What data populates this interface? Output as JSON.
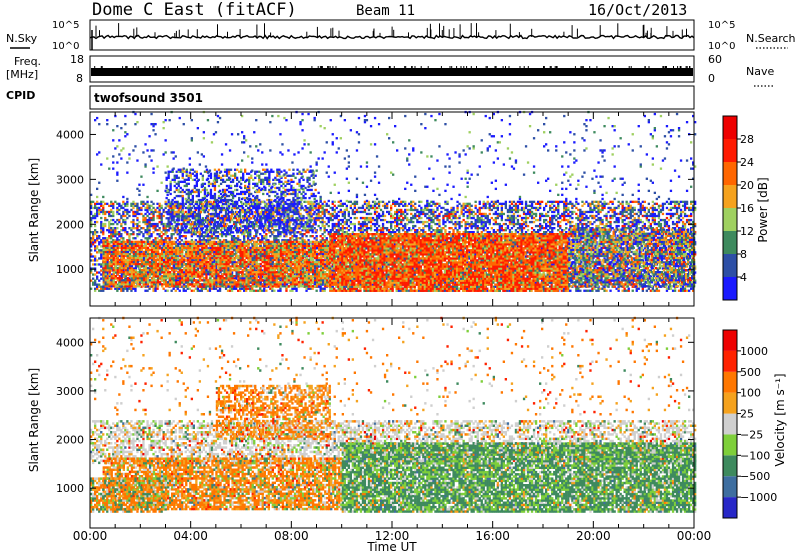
{
  "header": {
    "station": "Dome C East (fitACF)",
    "beam": "Beam 11",
    "date": "16/Oct/2013"
  },
  "top_panels": {
    "nsky_label": "N.Sky",
    "nsky_ticks": [
      "10^5",
      "10^0"
    ],
    "nsearch_label": "N.Search",
    "nsearch_ticks": [
      "10^5",
      "10^0"
    ],
    "freq_label": "Freq.",
    "freq_unit": "[MHz]",
    "freq_ticks": [
      "18",
      "8"
    ],
    "nave_label": "Nave",
    "nave_ticks": [
      "60",
      "0"
    ],
    "cpid_label": "CPID",
    "cpid_value": "twofsound 3501"
  },
  "chart_data": [
    {
      "type": "heatmap",
      "name": "power",
      "ylabel": "Slant Range [km]",
      "ylim": [
        180,
        4500
      ],
      "yticks": [
        "1000",
        "2000",
        "3000",
        "4000"
      ],
      "xlim": [
        0,
        24
      ],
      "colorbar": {
        "label": "Power [dB]",
        "ticks": [
          "4",
          "8",
          "12",
          "16",
          "20",
          "24",
          "28"
        ],
        "colors": [
          "#1a1aff",
          "#2d4fa6",
          "#3e8a5e",
          "#9fd060",
          "#f5a21e",
          "#ff6600",
          "#ff1a00",
          "#ee0000"
        ]
      },
      "bands": [
        {
          "t0": 0.0,
          "t1": 24.0,
          "r0": 500,
          "r1": 2500,
          "density": 0.55,
          "weights": [
            0.3,
            0.2,
            0.15,
            0.1,
            0.1,
            0.08,
            0.07
          ]
        },
        {
          "t0": 0.5,
          "t1": 9.5,
          "r0": 600,
          "r1": 1600,
          "density": 0.85,
          "weights": [
            0.02,
            0.06,
            0.1,
            0.12,
            0.2,
            0.25,
            0.25
          ]
        },
        {
          "t0": 9.5,
          "t1": 19.0,
          "r0": 500,
          "r1": 1800,
          "density": 0.9,
          "weights": [
            0.0,
            0.02,
            0.05,
            0.08,
            0.15,
            0.3,
            0.4
          ]
        },
        {
          "t0": 19.0,
          "t1": 24.0,
          "r0": 600,
          "r1": 1900,
          "density": 0.7,
          "weights": [
            0.15,
            0.2,
            0.2,
            0.15,
            0.15,
            0.1,
            0.05
          ]
        },
        {
          "t0": 3.0,
          "t1": 9.0,
          "r0": 1800,
          "r1": 3200,
          "density": 0.45,
          "weights": [
            0.45,
            0.2,
            0.1,
            0.1,
            0.1,
            0.05,
            0.0
          ]
        },
        {
          "t0": 0.0,
          "t1": 24.0,
          "r0": 2500,
          "r1": 4500,
          "density": 0.04,
          "weights": [
            0.5,
            0.3,
            0.1,
            0.1,
            0.0,
            0.0,
            0.0
          ]
        }
      ]
    },
    {
      "type": "heatmap",
      "name": "velocity",
      "ylabel": "Slant Range [km]",
      "ylim": [
        180,
        4500
      ],
      "yticks": [
        "1000",
        "2000",
        "3000",
        "4000"
      ],
      "xlabel": "Time UT",
      "xticks": [
        "00:00",
        "04:00",
        "08:00",
        "12:00",
        "16:00",
        "20:00",
        "00:00"
      ],
      "xlim": [
        0,
        24
      ],
      "colorbar": {
        "label": "Velocity [m s⁻¹]",
        "ticks": [
          "1000",
          "500",
          "100",
          "25",
          "−25",
          "−100",
          "−500",
          "−1000"
        ],
        "colors": [
          "#2828c8",
          "#3e6ea0",
          "#3e8a5e",
          "#7ecf3a",
          "#cfcfcf",
          "#f5a21e",
          "#ff7700",
          "#ff2200",
          "#ee0000"
        ]
      },
      "bands": [
        {
          "t0": 0.0,
          "t1": 24.0,
          "r0": 1500,
          "r1": 2400,
          "density": 0.55,
          "weights": [
            0.0,
            0.02,
            0.06,
            0.1,
            0.6,
            0.12,
            0.06,
            0.02,
            0.02
          ]
        },
        {
          "t0": 0.5,
          "t1": 10.0,
          "r0": 550,
          "r1": 1600,
          "density": 0.8,
          "weights": [
            0.0,
            0.02,
            0.06,
            0.08,
            0.1,
            0.2,
            0.5,
            0.04,
            0.0
          ]
        },
        {
          "t0": 5.0,
          "t1": 9.5,
          "r0": 2000,
          "r1": 3100,
          "density": 0.55,
          "weights": [
            0.0,
            0.0,
            0.02,
            0.03,
            0.1,
            0.25,
            0.55,
            0.05,
            0.0
          ]
        },
        {
          "t0": 10.0,
          "t1": 24.0,
          "r0": 500,
          "r1": 1900,
          "density": 0.85,
          "weights": [
            0.0,
            0.02,
            0.55,
            0.28,
            0.1,
            0.03,
            0.02,
            0.0,
            0.0
          ]
        },
        {
          "t0": 0.0,
          "t1": 3.0,
          "r0": 500,
          "r1": 1200,
          "density": 0.7,
          "weights": [
            0.0,
            0.0,
            0.25,
            0.15,
            0.1,
            0.1,
            0.4,
            0.0,
            0.0
          ]
        },
        {
          "t0": 0.0,
          "t1": 24.0,
          "r0": 2500,
          "r1": 4500,
          "density": 0.04,
          "weights": [
            0.0,
            0.0,
            0.05,
            0.05,
            0.2,
            0.2,
            0.4,
            0.1,
            0.0
          ]
        }
      ]
    }
  ]
}
